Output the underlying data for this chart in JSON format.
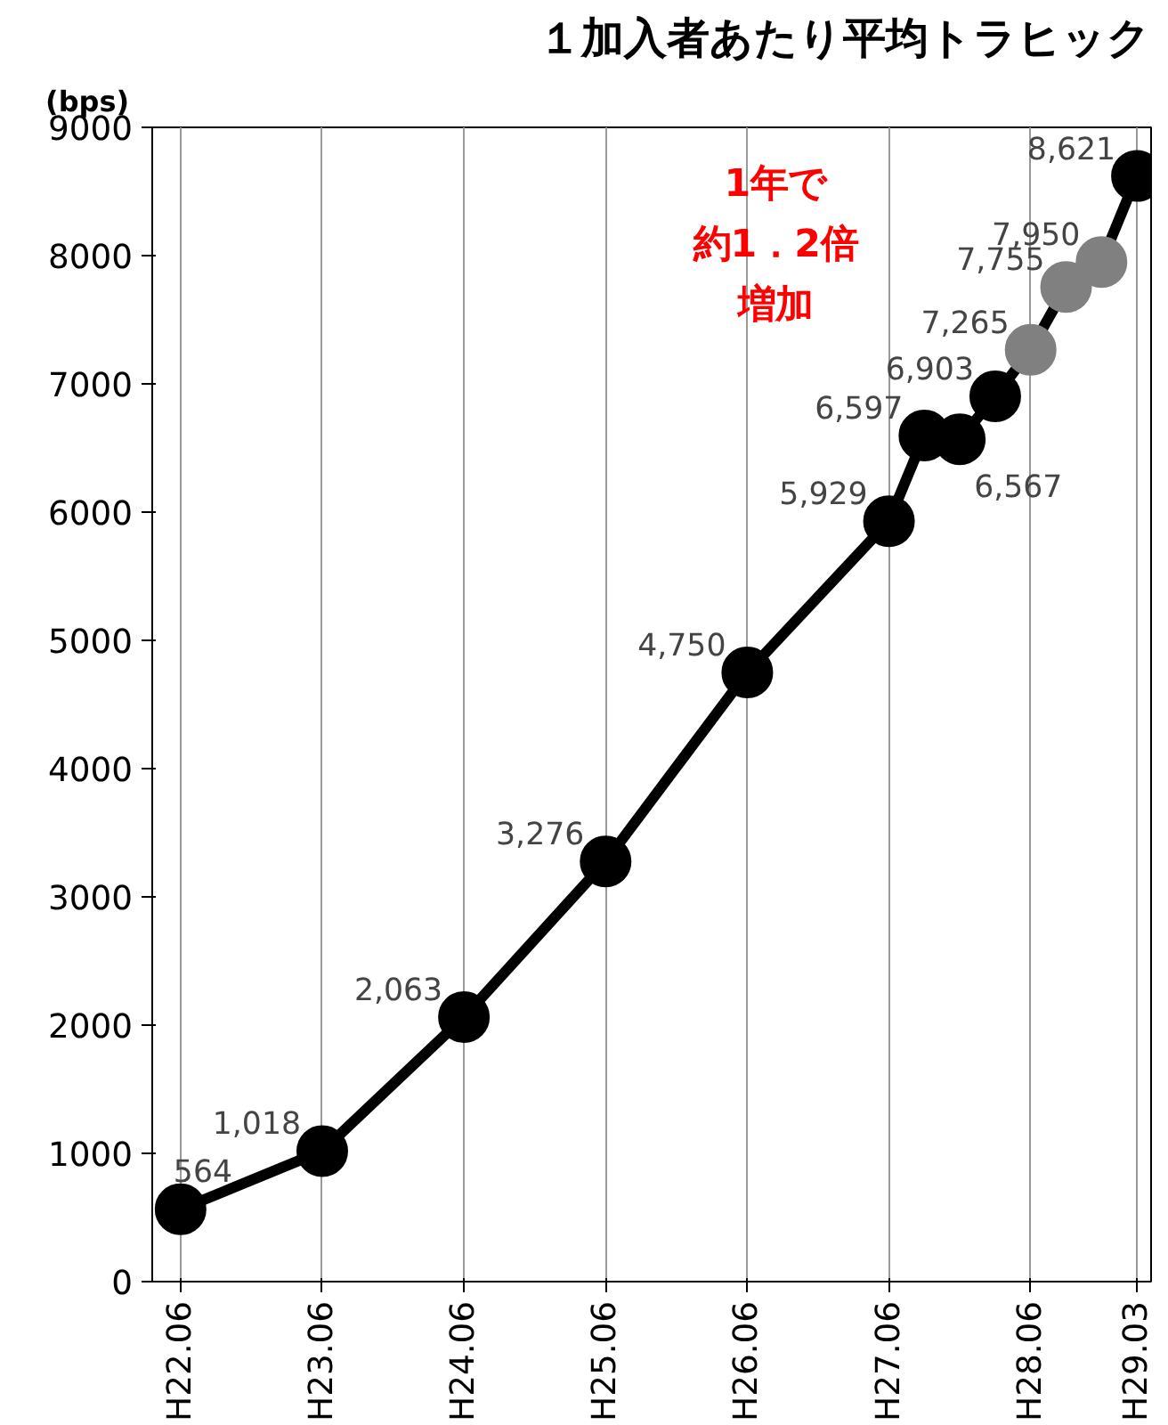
{
  "chart_data": {
    "type": "line",
    "title": "１加入者あたり平均トラヒック",
    "ylabel": "(bps)",
    "categories": [
      "H22.06",
      null,
      null,
      null,
      "H23.06",
      null,
      null,
      null,
      "H24.06",
      null,
      null,
      null,
      "H25.06",
      null,
      null,
      null,
      "H26.06",
      null,
      null,
      null,
      "H27.06",
      null,
      null,
      null,
      "H28.06",
      null,
      null,
      "H29.03"
    ],
    "ylim": [
      0,
      9000
    ],
    "yticks": [
      0,
      1000,
      2000,
      3000,
      4000,
      5000,
      6000,
      7000,
      8000,
      9000
    ],
    "series": [
      {
        "color": "#000000",
        "values": [
          564,
          null,
          null,
          null,
          1018,
          null,
          null,
          null,
          2063,
          null,
          null,
          null,
          3276,
          null,
          null,
          null,
          4750,
          null,
          null,
          null,
          5929,
          6597,
          6567,
          6903,
          7265,
          7755,
          7950,
          8621
        ],
        "colors": [
          "#000000",
          null,
          null,
          null,
          "#000000",
          null,
          null,
          null,
          "#000000",
          null,
          null,
          null,
          "#000000",
          null,
          null,
          null,
          "#000000",
          null,
          null,
          null,
          "#000000",
          "#000000",
          "#000000",
          "#000000",
          "#808080",
          "#808080",
          "#808080",
          "#000000"
        ],
        "value_labels": [
          "564",
          null,
          null,
          null,
          "1,018",
          null,
          null,
          null,
          "2,063",
          null,
          null,
          null,
          "3,276",
          null,
          null,
          null,
          "4,750",
          null,
          null,
          null,
          "5,929",
          "6,597",
          "6,567",
          "6,903",
          "7,265",
          "7,755",
          "7,950",
          "8,621"
        ]
      }
    ],
    "annotations": [
      "1年で",
      "約1．2倍",
      "増加"
    ],
    "grid": "x",
    "marker": "circle",
    "line_style": "solid"
  }
}
